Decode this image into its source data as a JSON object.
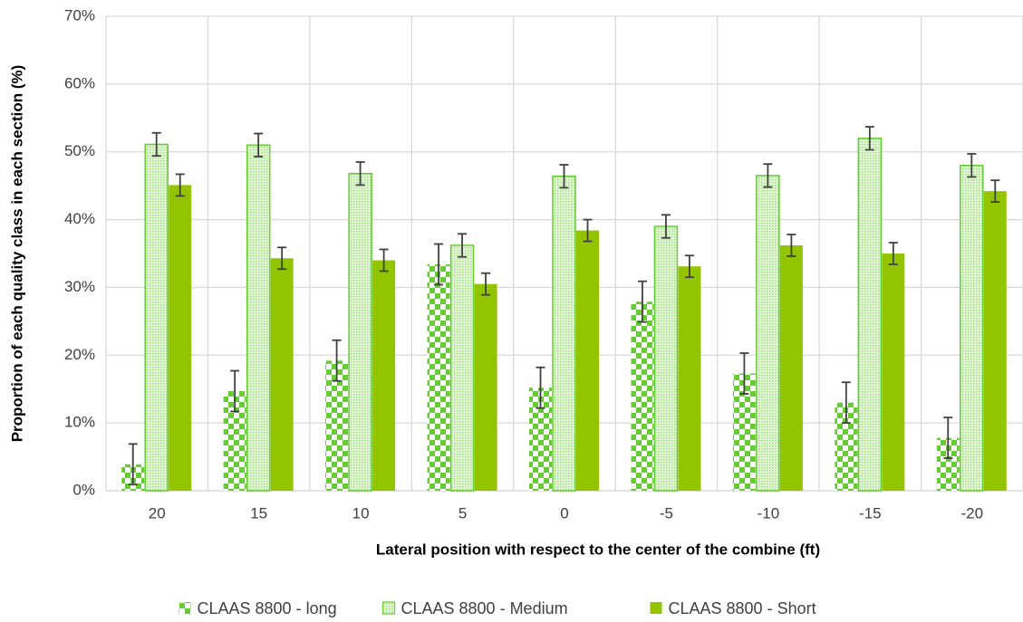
{
  "chart_data": {
    "type": "bar",
    "x_label": "Lateral position with respect to the center of the combine (ft)",
    "y_label": "Proportion of each quality class in each section (%)",
    "categories": [
      "20",
      "15",
      "10",
      "5",
      "0",
      "-5",
      "-10",
      "-15",
      "-20"
    ],
    "series": [
      {
        "name": "CLAAS 8800 - long",
        "color": "#66cc33",
        "pattern": "checker",
        "values": [
          3.9,
          14.7,
          19.2,
          33.4,
          15.2,
          27.9,
          17.3,
          13.0,
          7.8
        ],
        "errors": [
          3.0,
          3.0,
          3.0,
          3.0,
          3.0,
          3.0,
          3.0,
          3.0,
          3.0
        ]
      },
      {
        "name": "CLAAS 8800 - Medium",
        "color": "#66cc33",
        "pattern": "dots",
        "values": [
          51.1,
          51.0,
          46.8,
          36.2,
          46.4,
          39.0,
          46.5,
          52.0,
          48.0
        ],
        "errors": [
          1.7,
          1.7,
          1.7,
          1.7,
          1.7,
          1.7,
          1.7,
          1.7,
          1.7
        ]
      },
      {
        "name": "CLAAS 8800 - Short",
        "color": "#92c400",
        "pattern": "solid",
        "values": [
          45.1,
          34.3,
          34.0,
          30.5,
          38.4,
          33.1,
          36.2,
          35.0,
          44.2
        ],
        "errors": [
          1.6,
          1.6,
          1.6,
          1.6,
          1.6,
          1.6,
          1.6,
          1.6,
          1.6
        ]
      }
    ],
    "ylim": [
      0,
      70
    ],
    "yticks": [
      {
        "value": 0,
        "label": "0%"
      },
      {
        "value": 10,
        "label": "10%"
      },
      {
        "value": 20,
        "label": "20%"
      },
      {
        "value": 30,
        "label": "30%"
      },
      {
        "value": 40,
        "label": "40%"
      },
      {
        "value": 50,
        "label": "50%"
      },
      {
        "value": 60,
        "label": "60%"
      },
      {
        "value": 70,
        "label": "70%"
      }
    ],
    "grid": true,
    "legend": "bottom"
  }
}
